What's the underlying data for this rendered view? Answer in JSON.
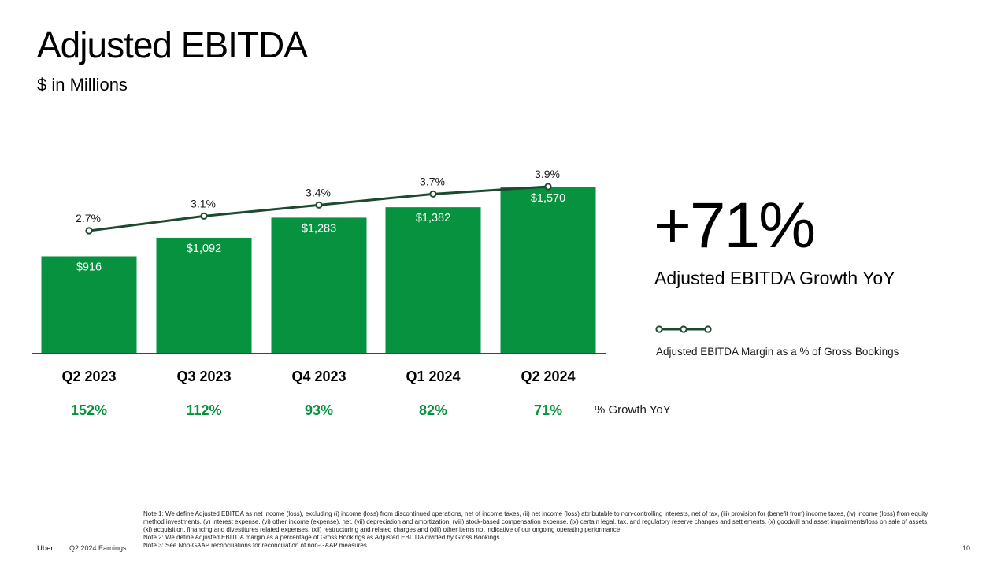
{
  "slide": {
    "title": "Adjusted EBITDA",
    "subtitle": "$ in Millions",
    "big_stat": "+71%",
    "big_stat_label": "Adjusted EBITDA Growth YoY",
    "legend_label": "Adjusted EBITDA Margin as a % of Gross Bookings",
    "growth_row_label": "% Growth YoY",
    "notes": [
      "Note 1: We define Adjusted EBITDA as net income (loss), excluding (i) income (loss) from discontinued operations, net of income taxes, (ii) net income (loss) attributable to non-controlling interests, net of tax, (iii) provision for (benefit from) income taxes, (iv) income (loss) from equity method investments, (v) interest expense, (vi) other income (expense), net, (vii) depreciation and amortization, (viii) stock-based compensation expense, (ix) certain legal, tax, and regulatory reserve changes and settlements, (x) goodwill and asset impairments/loss on sale of assets, (xi) acquisition, financing and divestitures related expenses, (xii) restructuring and related charges and (xiii) other items not indicative of our ongoing operating performance.",
      "Note 2: We define Adjusted EBITDA margin as a percentage of Gross Bookings as Adjusted EBITDA divided by Gross Bookings.",
      "Note 3: See Non-GAAP reconciliations for reconciliation of non-GAAP measures."
    ]
  },
  "footer": {
    "brand": "Uber",
    "report": "Q2 2024 Earnings",
    "page": "10"
  },
  "colors": {
    "bar": "#06923e",
    "line": "#1c4a30",
    "growth_text": "#06923e"
  },
  "chart_data": {
    "type": "bar",
    "categories": [
      "Q2 2023",
      "Q3 2023",
      "Q4 2023",
      "Q1 2024",
      "Q2 2024"
    ],
    "series": [
      {
        "name": "",
        "values": [
          916,
          1092,
          1283,
          1382,
          1570
        ],
        "labels": [
          "$916",
          "$1,092",
          "$1,283",
          "$1,382",
          "$1,570"
        ]
      },
      {
        "name": "Adjusted EBITDA Margin as a % of Gross Bookings",
        "type": "line",
        "values": [
          2.7,
          3.1,
          3.4,
          3.7,
          3.9
        ],
        "labels": [
          "2.7%",
          "3.1%",
          "3.4%",
          "3.7%",
          "3.9%"
        ]
      }
    ],
    "growth_yoy": [
      "152%",
      "112%",
      "93%",
      "82%",
      "71%"
    ],
    "title": "",
    "xlabel": "",
    "ylabel": "",
    "grid": false,
    "legend": "right"
  }
}
